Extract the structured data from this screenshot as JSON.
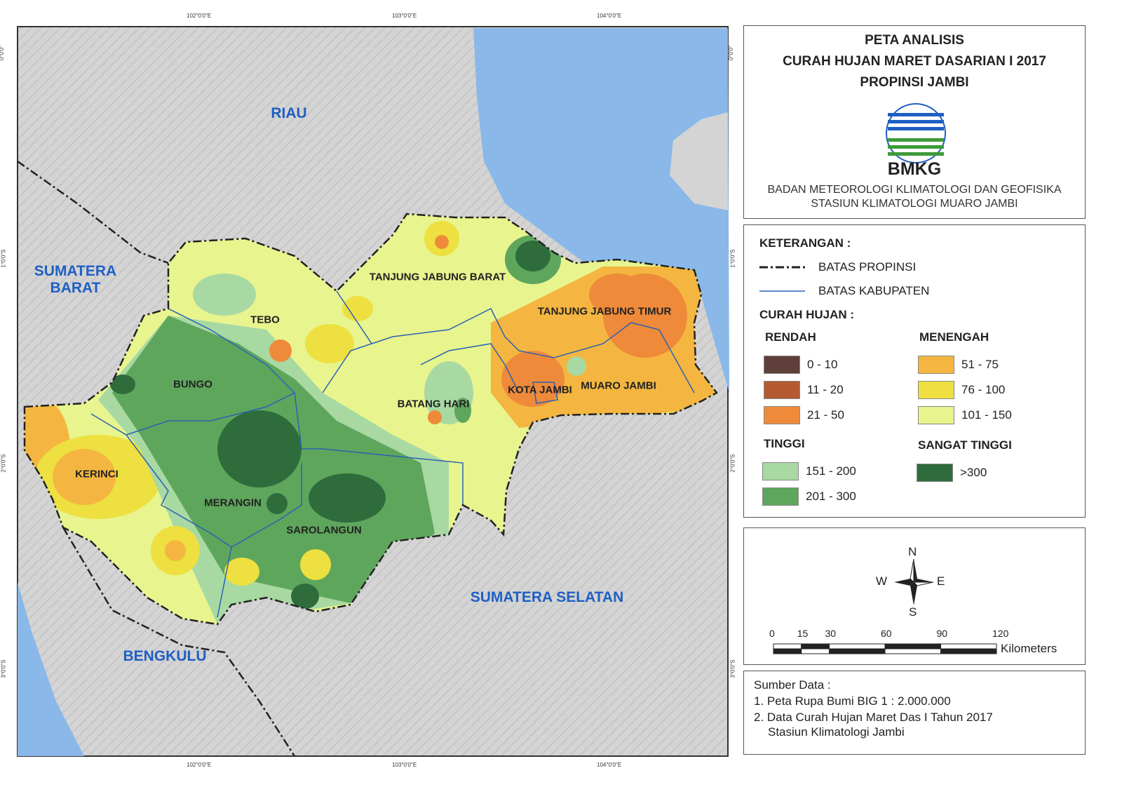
{
  "map": {
    "lon_labels": [
      "102°0'0\"E",
      "103°0'0\"E",
      "104°0'0\"E"
    ],
    "lat_labels": [
      "0°0'0\"",
      "1°0'0\"S",
      "2°0'0\"S",
      "3°0'0\"S"
    ],
    "regions": [
      "RIAU",
      "SUMATERA BARAT",
      "BENGKULU",
      "SUMATERA SELATAN"
    ],
    "districts": [
      "TANJUNG JABUNG BARAT",
      "TEBO",
      "TANJUNG JABUNG TIMUR",
      "BUNGO",
      "BATANG HARI",
      "KOTA JAMBI",
      "MUARO JAMBI",
      "KERINCI",
      "MERANGIN",
      "SAROLANGUN"
    ]
  },
  "header": {
    "title": [
      "PETA ANALISIS",
      "CURAH HUJAN MARET DASARIAN I 2017",
      "PROPINSI JAMBI"
    ],
    "logo_text": "BMKG",
    "agency": [
      "BADAN METEOROLOGI KLIMATOLOGI DAN GEOFISIKA",
      "STASIUN KLIMATOLOGI MUARO JAMBI"
    ]
  },
  "legend": {
    "title": "KETERANGAN :",
    "boundaries": [
      "BATAS PROPINSI",
      "BATAS KABUPATEN"
    ],
    "rain_title": "CURAH HUJAN :",
    "groups": [
      {
        "name": "RENDAH",
        "items": [
          {
            "label": "0 - 10",
            "color": "#5e3f3a"
          },
          {
            "label": "11 - 20",
            "color": "#b35a30"
          },
          {
            "label": "21 - 50",
            "color": "#ee8a3a"
          }
        ]
      },
      {
        "name": "MENENGAH",
        "items": [
          {
            "label": "51 - 75",
            "color": "#f4b640"
          },
          {
            "label": "76 - 100",
            "color": "#ede040"
          },
          {
            "label": "101 - 150",
            "color": "#e8f48e"
          }
        ]
      },
      {
        "name": "TINGGI",
        "items": [
          {
            "label": "151 - 200",
            "color": "#a8d9a2"
          },
          {
            "label": "201 - 300",
            "color": "#5ea65c"
          }
        ]
      },
      {
        "name": "SANGAT TINGGI",
        "items": [
          {
            "label": ">300",
            "color": "#2f6c3c"
          }
        ]
      }
    ]
  },
  "compass": {
    "n": "N",
    "w": "W",
    "e": "E",
    "s": "S"
  },
  "scale": {
    "ticks": [
      0,
      15,
      30,
      60,
      90,
      120
    ],
    "unit": "Kilometers"
  },
  "source": {
    "title": "Sumber Data :",
    "lines": [
      "1. Peta Rupa Bumi BIG 1 : 2.000.000",
      "2. Data Curah Hujan Maret Das I Tahun 2017",
      "Stasiun Klimatologi Jambi"
    ]
  }
}
